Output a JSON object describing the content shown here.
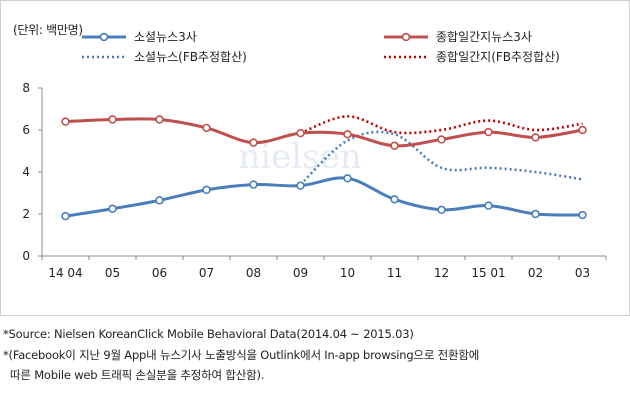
{
  "unit_label": "(단위: 백만명)",
  "watermark": "nielsen",
  "chart_data": {
    "type": "line",
    "categories": [
      "14 04",
      "05",
      "06",
      "07",
      "08",
      "09",
      "10",
      "11",
      "12",
      "15 01",
      "02",
      "03"
    ],
    "ylim": [
      0,
      8
    ],
    "yticks": [
      0,
      2,
      4,
      6,
      8
    ],
    "grid": false,
    "legend_position": "top",
    "series": [
      {
        "name": "소셜뉴스3사",
        "color": "#4a7ebb",
        "style": "solid",
        "marker": true,
        "values": [
          1.9,
          2.25,
          2.65,
          3.15,
          3.4,
          3.35,
          3.7,
          2.7,
          2.2,
          2.4,
          2.0,
          1.95
        ]
      },
      {
        "name": "종합일간지뉴스3사",
        "color": "#c0504d",
        "style": "solid",
        "marker": true,
        "values": [
          6.4,
          6.5,
          6.5,
          6.1,
          5.4,
          5.85,
          5.8,
          5.25,
          5.55,
          5.9,
          5.65,
          6.0
        ]
      },
      {
        "name": "소셜뉴스(FB추정합산)",
        "color": "#4a7ebb",
        "style": "dotted",
        "marker": false,
        "values": [
          null,
          null,
          null,
          null,
          null,
          3.4,
          5.5,
          5.8,
          4.2,
          4.2,
          4.0,
          3.65
        ]
      },
      {
        "name": "종합일간지(FB추정합산)",
        "color": "#c00000",
        "style": "dotted",
        "marker": false,
        "values": [
          null,
          null,
          null,
          null,
          null,
          5.85,
          6.65,
          5.9,
          6.0,
          6.45,
          6.0,
          6.3
        ]
      }
    ]
  },
  "footnotes": [
    "*Source: Nielsen KoreanClick Mobile Behavioral Data(2014.04 ~ 2015.03)",
    "*(Facebook이 지난 9월 App내 뉴스기사 노출방식을 Outlink에서 In-app browsing으로 전환함에",
    "따른 Mobile web 트래픽 손실분을 추정하여 합산함)."
  ]
}
